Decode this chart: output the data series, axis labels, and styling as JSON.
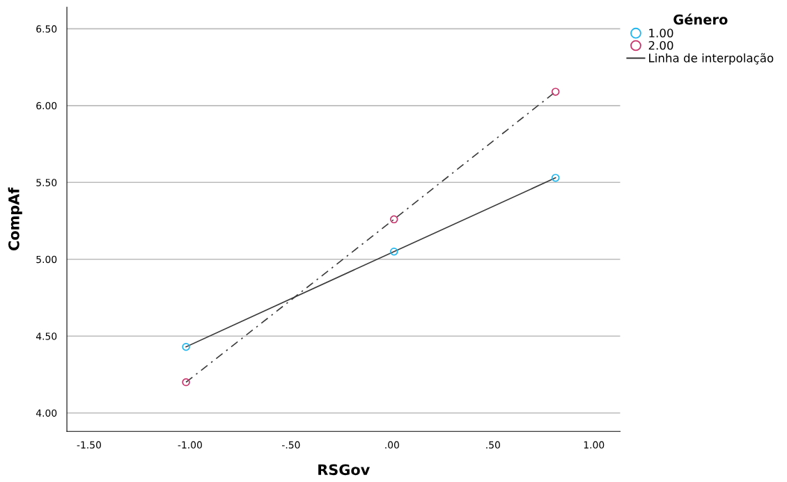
{
  "chart_data": {
    "type": "line",
    "xlabel": "RSGov",
    "ylabel": "CompAf",
    "legend_title": "Género",
    "legend": "top right",
    "grid": "y",
    "xlim": [
      -1.61,
      1.13
    ],
    "ylim": [
      3.88,
      6.64
    ],
    "xticks": [
      {
        "value": -1.5,
        "label": "-1.50"
      },
      {
        "value": -1.0,
        "label": "-1.00"
      },
      {
        "value": -0.5,
        "label": "-.50"
      },
      {
        "value": 0,
        "label": ".00"
      },
      {
        "value": 0.5,
        "label": ".50"
      },
      {
        "value": 1.0,
        "label": "1.00"
      }
    ],
    "yticks": [
      {
        "value": 4.0,
        "label": "4.00"
      },
      {
        "value": 4.5,
        "label": "4.50"
      },
      {
        "value": 5.0,
        "label": "5.00"
      },
      {
        "value": 5.5,
        "label": "5.50"
      },
      {
        "value": 6.0,
        "label": "6.00"
      },
      {
        "value": 6.5,
        "label": "6.50"
      }
    ],
    "series": [
      {
        "name": "1.00",
        "type": "scatter",
        "marker": "circle",
        "color": "#1fb6f0",
        "x": [
          -1.02,
          0.01,
          0.81
        ],
        "values": [
          4.43,
          5.05,
          5.53
        ]
      },
      {
        "name": "2.00",
        "type": "scatter",
        "marker": "circle",
        "color": "#c8336a",
        "x": [
          -1.02,
          0.01,
          0.81
        ],
        "values": [
          4.2,
          5.26,
          6.09
        ]
      },
      {
        "name": "Linha de interpolação",
        "marker": "none",
        "line_style": "solid",
        "color": "#3a3a3a",
        "x": [
          -1.02,
          0.01,
          0.81
        ],
        "values": [
          4.43,
          5.05,
          5.53
        ]
      },
      {
        "marker": "none",
        "line_style": "dashdot",
        "color": "#3a3a3a",
        "x": [
          -1.02,
          0.01,
          0.81
        ],
        "values": [
          4.2,
          5.26,
          6.09
        ]
      }
    ]
  }
}
